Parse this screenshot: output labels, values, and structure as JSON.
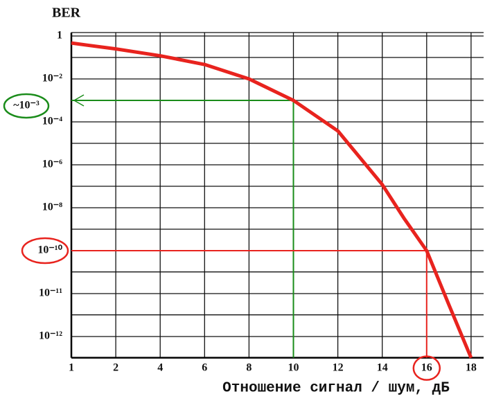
{
  "chart_data": {
    "type": "line",
    "title": "BER",
    "x_label": "Отношение сигнал / шум, дБ",
    "x": [
      1,
      2,
      4,
      6,
      8,
      10,
      12,
      14,
      15,
      16,
      17,
      18
    ],
    "series": [
      {
        "name": "BER",
        "color": "#e8231e",
        "values": [
          0.47,
          0.25,
          0.12,
          0.047,
          0.01,
          0.001,
          3.8e-05,
          1.2e-07,
          3e-09,
          1e-10,
          5.5e-12,
          3.2e-13
        ]
      }
    ],
    "xlim": [
      1,
      18
    ],
    "xticks": [
      1,
      2,
      4,
      6,
      8,
      10,
      12,
      14,
      16,
      18
    ],
    "ylim": [
      3.2e-13,
      1
    ],
    "log_y": true,
    "yticks": [
      1,
      {
        "value": 0.01,
        "label": "10⁻²"
      },
      {
        "value": 0.0001,
        "label": "10⁻⁴"
      },
      {
        "value": 1e-06,
        "label": "10⁻⁶"
      },
      {
        "value": 1e-08,
        "label": "10⁻⁸"
      },
      {
        "value": 1e-10,
        "label": "10⁻¹⁰"
      },
      {
        "value": 1e-11,
        "label": "10⁻¹¹"
      },
      {
        "value": 1e-12,
        "label": "10⁻¹²"
      }
    ],
    "yticks_minor": [
      0.1,
      0.001,
      1e-05,
      1e-07,
      1e-09,
      3.2e-11,
      3.2e-12
    ],
    "grid": true,
    "markers": [
      {
        "x": 10,
        "y": 0.001,
        "color": "#1a8c1a",
        "label": "~10⁻³"
      },
      {
        "x": 16,
        "y": 1e-10,
        "color": "#e8231e"
      }
    ]
  }
}
